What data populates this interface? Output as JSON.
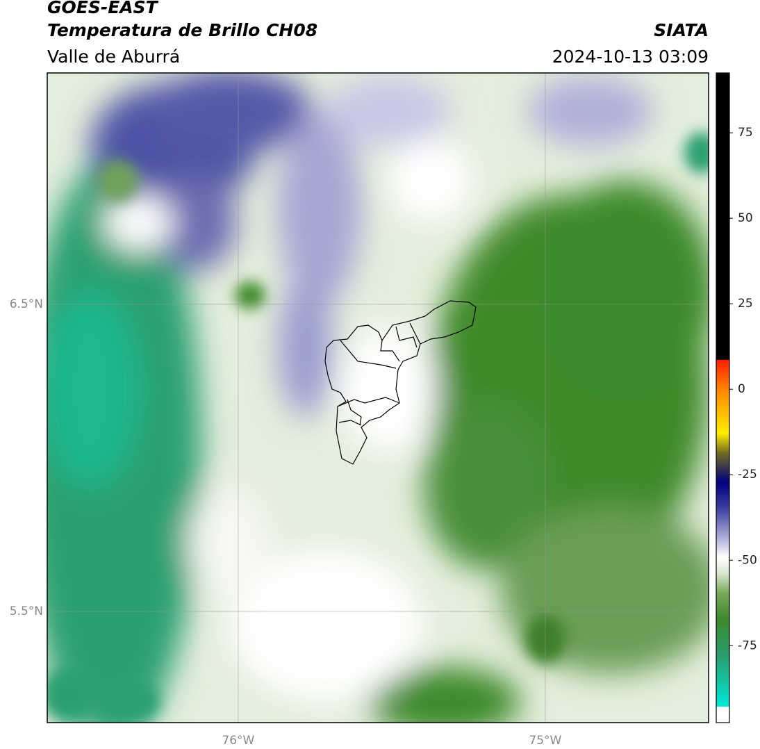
{
  "header": {
    "satellite": "GOES-EAST",
    "product": "Temperatura de Brillo CH08",
    "region": "Valle de Aburrá",
    "source": "SIATA",
    "datetime": "2024-10-13 03:09"
  },
  "map": {
    "xlim": [
      -76.622,
      -74.468
    ],
    "ylim": [
      5.138,
      7.253
    ],
    "xticks": [
      {
        "value": -76,
        "label": "76°W"
      },
      {
        "value": -75,
        "label": "75°W"
      }
    ],
    "yticks": [
      {
        "value": 6.5,
        "label": "6.5°N"
      },
      {
        "value": 5.5,
        "label": "5.5°N"
      }
    ],
    "grid": true
  },
  "colorbar": {
    "ylim": [
      -97.5,
      92.5
    ],
    "yticks": [
      75,
      50,
      25,
      0,
      -25,
      -50,
      -75
    ]
  }
}
